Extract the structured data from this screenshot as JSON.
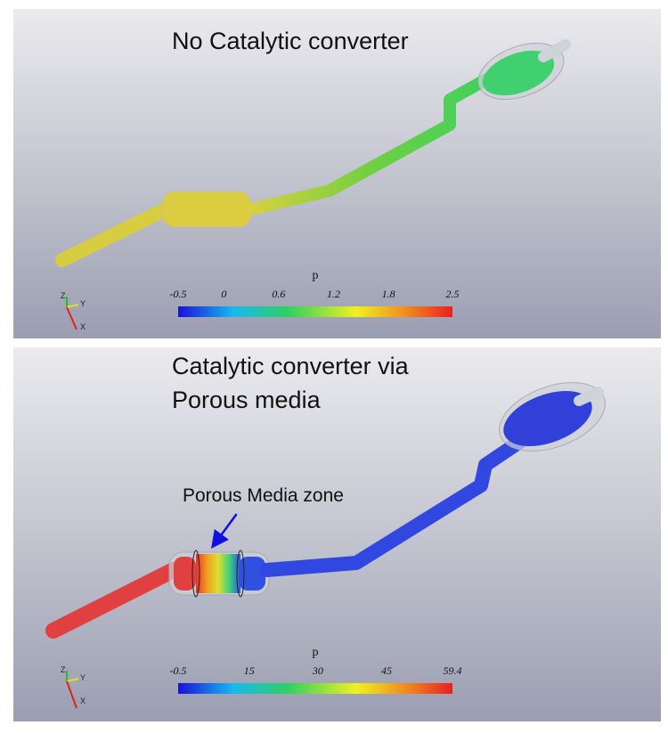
{
  "panels": [
    {
      "title": [
        "No Catalytic converter"
      ],
      "colorbar": {
        "label": "p",
        "lim": [
          -0.5,
          2.5
        ],
        "ticks": [
          -0.5,
          0,
          0.6,
          1.2,
          1.8,
          2.5
        ]
      },
      "triad": [
        "Z",
        "Y",
        "X"
      ]
    },
    {
      "title": [
        "Catalytic converter via",
        "Porous media"
      ],
      "annotation": "Porous Media zone",
      "colorbar": {
        "label": "p",
        "lim": [
          -0.5,
          59.4
        ],
        "ticks": [
          -0.5,
          15,
          30,
          45,
          59.4
        ]
      },
      "triad": [
        "Z",
        "Y",
        "X"
      ]
    }
  ]
}
